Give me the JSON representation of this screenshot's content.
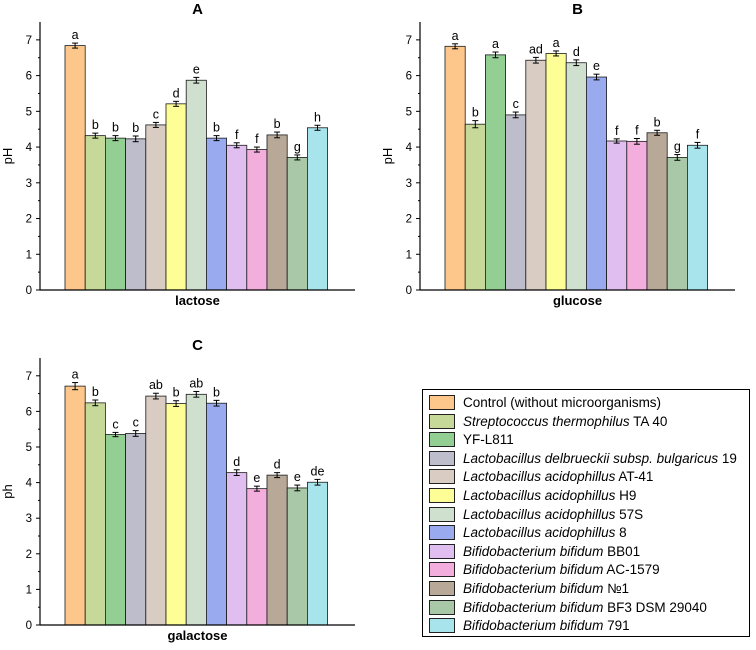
{
  "legend": [
    {
      "name": "Control (without microorganisms)",
      "italic": "",
      "rest": "Control (without microorganisms)",
      "color": "#FDC78B"
    },
    {
      "name": "Streptococcus thermophilus TA 40",
      "italic": "Streptococcus thermophilus",
      "rest": " TA 40",
      "color": "#C6D998"
    },
    {
      "name": "YF-L811",
      "italic": "",
      "rest": "YF-L811",
      "color": "#93CE92"
    },
    {
      "name": "Lactobacillus delbrueckii subsp. bulgaricus 19",
      "italic": "Lactobacillus delbrueckii subsp. bulgaricus",
      "rest": " 19",
      "color": "#BDBDCC"
    },
    {
      "name": "Lactobacillus acidophillus AT-41",
      "italic": "Lactobacillus acidophillus",
      "rest": " AT-41",
      "color": "#D8CCC3"
    },
    {
      "name": "Lactobacillus acidophillus H9",
      "italic": "Lactobacillus acidophillus",
      "rest": " H9",
      "color": "#FEFE96"
    },
    {
      "name": "Lactobacillus acidophillus 57S",
      "italic": "Lactobacillus acidophillus",
      "rest": " 57S",
      "color": "#CFE0CF"
    },
    {
      "name": "Lactobacillus acidophillus 8",
      "italic": "Lactobacillus acidophillus",
      "rest": " 8",
      "color": "#99AAEE"
    },
    {
      "name": "Bifidobacterium bifidum BB01",
      "italic": "Bifidobacterium bifidum",
      "rest": " BB01",
      "color": "#E0BFF0"
    },
    {
      "name": "Bifidobacterium bifidum AC-1579",
      "italic": "Bifidobacterium bifidum",
      "rest": " AC-1579",
      "color": "#F3AEDD"
    },
    {
      "name": "Bifidobacterium bifidum №1",
      "italic": "Bifidobacterium bifidum",
      "rest": " №1",
      "color": "#B8A898"
    },
    {
      "name": "Bifidobacterium bifidum BF3 DSM 29040",
      "italic": "Bifidobacterium bifidum",
      "rest": " BF3 DSM 29040",
      "color": "#A8C8A8"
    },
    {
      "name": "Bifidobacterium bifidum 791",
      "italic": "Bifidobacterium bifidum",
      "rest": " 791",
      "color": "#A8E4EC"
    }
  ],
  "chart_data": [
    {
      "type": "bar",
      "panel": "A",
      "title": "A",
      "xlabel": "lactose",
      "ylabel": "pH",
      "ylim": [
        0,
        7.5
      ],
      "yticks": [
        0,
        1,
        2,
        3,
        4,
        5,
        6,
        7
      ],
      "values": [
        6.84,
        4.32,
        4.25,
        4.23,
        4.62,
        5.21,
        5.87,
        4.25,
        4.05,
        3.93,
        4.34,
        3.71,
        4.54
      ],
      "errors": [
        0.07,
        0.07,
        0.07,
        0.08,
        0.07,
        0.07,
        0.08,
        0.07,
        0.07,
        0.07,
        0.08,
        0.07,
        0.07
      ],
      "letters": [
        "a",
        "b",
        "b",
        "b",
        "c",
        "d",
        "e",
        "b",
        "f",
        "f",
        "b",
        "g",
        "h"
      ]
    },
    {
      "type": "bar",
      "panel": "B",
      "title": "B",
      "xlabel": "glucose",
      "ylabel": "pH",
      "ylim": [
        0,
        7.5
      ],
      "yticks": [
        0,
        1,
        2,
        3,
        4,
        5,
        6,
        7
      ],
      "values": [
        6.82,
        4.64,
        6.58,
        4.9,
        6.43,
        6.62,
        6.36,
        5.96,
        4.17,
        4.16,
        4.4,
        3.71,
        4.05
      ],
      "errors": [
        0.07,
        0.1,
        0.08,
        0.08,
        0.08,
        0.07,
        0.08,
        0.08,
        0.06,
        0.08,
        0.07,
        0.08,
        0.08
      ],
      "letters": [
        "a",
        "b",
        "a",
        "c",
        "ad",
        "a",
        "d",
        "e",
        "f",
        "f",
        "b",
        "g",
        "f"
      ]
    },
    {
      "type": "bar",
      "panel": "C",
      "title": "C",
      "xlabel": "galactose",
      "ylabel": "ph",
      "ylim": [
        0,
        7.5
      ],
      "yticks": [
        0,
        1,
        2,
        3,
        4,
        5,
        6,
        7
      ],
      "values": [
        6.71,
        6.24,
        5.35,
        5.38,
        6.43,
        6.22,
        6.48,
        6.23,
        4.28,
        3.83,
        4.21,
        3.85,
        4.01
      ],
      "errors": [
        0.1,
        0.08,
        0.06,
        0.08,
        0.08,
        0.08,
        0.08,
        0.08,
        0.08,
        0.07,
        0.07,
        0.08,
        0.08
      ],
      "letters": [
        "a",
        "b",
        "c",
        "c",
        "ab",
        "b",
        "ab",
        "b",
        "d",
        "e",
        "d",
        "e",
        "de"
      ]
    }
  ]
}
